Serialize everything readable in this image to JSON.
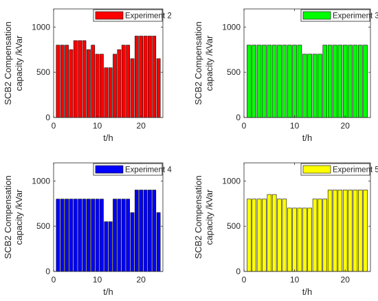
{
  "chart_data": [
    {
      "type": "bar",
      "legend": "Experiment 2",
      "color": "#ff0000",
      "x": [
        1,
        2,
        3,
        4,
        5,
        6,
        7,
        8,
        9,
        10,
        11,
        12,
        13,
        14,
        15,
        16,
        17,
        18,
        19,
        20,
        21,
        22,
        23,
        24
      ],
      "values": [
        800,
        800,
        800,
        750,
        850,
        850,
        850,
        750,
        800,
        700,
        700,
        550,
        550,
        700,
        750,
        800,
        800,
        650,
        900,
        900,
        900,
        900,
        900,
        650
      ],
      "xlabel": "t/h",
      "ylabel": "SCB2 Compensation capacity /kVar",
      "xlim": [
        0,
        25
      ],
      "ylim": [
        0,
        1200
      ],
      "xticks": [
        0,
        10,
        20
      ],
      "yticks": [
        0,
        500,
        1000
      ],
      "legend_position": "top-right",
      "grid": false
    },
    {
      "type": "bar",
      "legend": "Experiment 3",
      "color": "#00ff00",
      "x": [
        1,
        2,
        3,
        4,
        5,
        6,
        7,
        8,
        9,
        10,
        11,
        12,
        13,
        14,
        15,
        16,
        17,
        18,
        19,
        20,
        21,
        22,
        23,
        24
      ],
      "values": [
        800,
        800,
        800,
        800,
        800,
        800,
        800,
        800,
        800,
        800,
        800,
        700,
        700,
        700,
        700,
        800,
        800,
        800,
        800,
        800,
        800,
        800,
        800,
        800
      ],
      "xlabel": "t/h",
      "ylabel": "SCB2 Compensation capacity /kVar",
      "xlim": [
        0,
        25
      ],
      "ylim": [
        0,
        1200
      ],
      "xticks": [
        0,
        10,
        20
      ],
      "yticks": [
        0,
        500,
        1000
      ],
      "legend_position": "top-right",
      "grid": false
    },
    {
      "type": "bar",
      "legend": "Experiment 4",
      "color": "#0000ff",
      "x": [
        1,
        2,
        3,
        4,
        5,
        6,
        7,
        8,
        9,
        10,
        11,
        12,
        13,
        14,
        15,
        16,
        17,
        18,
        19,
        20,
        21,
        22,
        23,
        24
      ],
      "values": [
        800,
        800,
        800,
        800,
        800,
        800,
        800,
        800,
        800,
        800,
        800,
        550,
        550,
        800,
        800,
        800,
        800,
        650,
        900,
        900,
        900,
        900,
        900,
        650
      ],
      "xlabel": "t/h",
      "ylabel": "SCB2 Compensation capacity /kVar",
      "xlim": [
        0,
        25
      ],
      "ylim": [
        0,
        1200
      ],
      "xticks": [
        0,
        10,
        20
      ],
      "yticks": [
        0,
        500,
        1000
      ],
      "legend_position": "top-right",
      "grid": false
    },
    {
      "type": "bar",
      "legend": "Experiment 5",
      "color": "#ffff00",
      "x": [
        1,
        2,
        3,
        4,
        5,
        6,
        7,
        8,
        9,
        10,
        11,
        12,
        13,
        14,
        15,
        16,
        17,
        18,
        19,
        20,
        21,
        22,
        23,
        24
      ],
      "values": [
        800,
        800,
        800,
        800,
        850,
        850,
        800,
        800,
        700,
        700,
        700,
        700,
        700,
        800,
        800,
        800,
        900,
        900,
        900,
        900,
        900,
        900,
        900,
        900
      ],
      "xlabel": "t/h",
      "ylabel": "SCB2 Compensation capacity /kVar",
      "xlim": [
        0,
        25
      ],
      "ylim": [
        0,
        1200
      ],
      "xticks": [
        0,
        10,
        20
      ],
      "yticks": [
        0,
        500,
        1000
      ],
      "legend_position": "top-right",
      "grid": false
    }
  ]
}
